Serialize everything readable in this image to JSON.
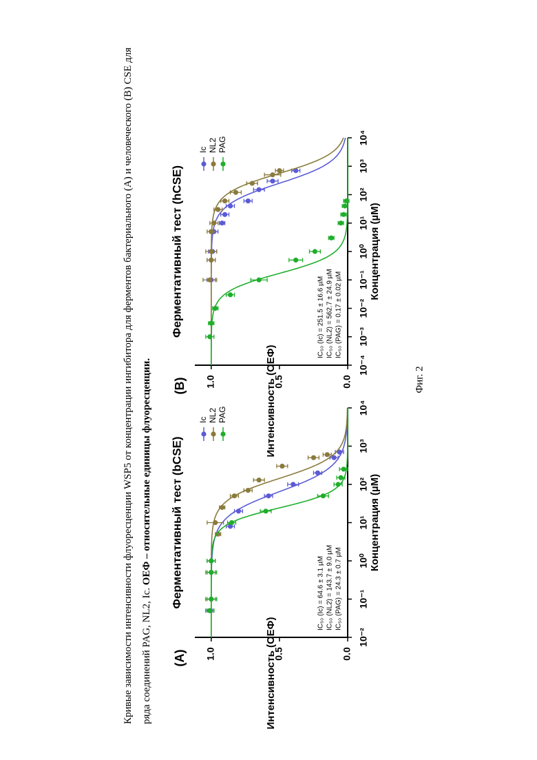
{
  "caption": {
    "text_plain": "Кривые зависимости интенсивности флуоресценции WSP5 от концентрации ингибитора для ферментов бактериального (А) и человеческого (В) CSE для ряда соединений PAG, NL2, Ic. ",
    "text_bold": "ОЕФ – относительные единицы флуоресценции."
  },
  "figure_label": "Фиг. 2",
  "colors": {
    "Ic": "#5b5bd6",
    "NL2": "#8a7a3c",
    "PAG": "#1fae2b"
  },
  "chart_data": [
    {
      "type": "scatter",
      "panel_label": "(A)",
      "title": "Ферментативный тест (bCSE)",
      "xlabel": "Концентрация (µM)",
      "ylabel": "Интенсивность (ОЕФ)",
      "x_scale": "log",
      "xlim": [
        0.01,
        10000
      ],
      "ylim": [
        0,
        1.12
      ],
      "x_tick_labels": [
        "10⁻²",
        "10⁻¹",
        "10⁰",
        "10¹",
        "10²",
        "10³",
        "10⁴"
      ],
      "y_tick_labels": [
        "0.0",
        "0.5",
        "1.0"
      ],
      "legend_position": "top-right",
      "annotations": [
        "IC₅₀ (Ic) = 64.6 ± 3.1 µM",
        "IC₅₀ (NL2) = 143.7 ± 9.0 µM",
        "IC₅₀ (PAG) = 24.3 ± 0.7 µM"
      ],
      "series": [
        {
          "name": "Ic",
          "ic50": 64.6,
          "hill": 1.3,
          "points": [
            [
              0.05,
              1.01
            ],
            [
              0.1,
              1.0
            ],
            [
              0.5,
              1.0
            ],
            [
              1,
              1.0
            ],
            [
              8,
              0.86
            ],
            [
              20,
              0.8
            ],
            [
              50,
              0.58
            ],
            [
              100,
              0.4
            ],
            [
              200,
              0.22
            ],
            [
              500,
              0.1
            ],
            [
              700,
              0.06
            ]
          ],
          "errors": [
            0.02,
            0.04,
            0.03,
            0.03,
            0.03,
            0.03,
            0.03,
            0.04,
            0.03,
            0.03,
            0.03
          ]
        },
        {
          "name": "NL2",
          "ic50": 143.7,
          "hill": 1.5,
          "points": [
            [
              0.05,
              1.01
            ],
            [
              0.1,
              1.0
            ],
            [
              0.5,
              1.0
            ],
            [
              1,
              1.0
            ],
            [
              5,
              0.95
            ],
            [
              10,
              0.97
            ],
            [
              25,
              0.92
            ],
            [
              50,
              0.83
            ],
            [
              70,
              0.73
            ],
            [
              130,
              0.65
            ],
            [
              300,
              0.48
            ],
            [
              500,
              0.25
            ],
            [
              600,
              0.15
            ]
          ],
          "errors": [
            0.03,
            0.03,
            0.03,
            0.03,
            0.02,
            0.06,
            0.02,
            0.03,
            0.03,
            0.04,
            0.04,
            0.04,
            0.03
          ]
        },
        {
          "name": "PAG",
          "ic50": 24.3,
          "hill": 2.0,
          "points": [
            [
              0.05,
              1.01
            ],
            [
              0.1,
              1.0
            ],
            [
              0.5,
              1.0
            ],
            [
              1,
              1.0
            ],
            [
              10,
              0.85
            ],
            [
              20,
              0.6
            ],
            [
              50,
              0.18
            ],
            [
              100,
              0.07
            ],
            [
              150,
              0.05
            ],
            [
              250,
              0.03
            ]
          ],
          "errors": [
            0.03,
            0.04,
            0.04,
            0.03,
            0.03,
            0.04,
            0.04,
            0.03,
            0.03,
            0.03
          ]
        }
      ]
    },
    {
      "type": "scatter",
      "panel_label": "(B)",
      "title": "Ферментативный тест (hCSE)",
      "xlabel": "Концентрация (µM)",
      "ylabel": "Интенсивность (ОЕФ)",
      "x_scale": "log",
      "xlim": [
        0.0001,
        10000
      ],
      "ylim": [
        0,
        1.12
      ],
      "x_tick_labels": [
        "10⁻⁴",
        "10⁻³",
        "10⁻²",
        "10⁻¹",
        "10⁰",
        "10¹",
        "10²",
        "10³",
        "10⁴"
      ],
      "y_tick_labels": [
        "0.0",
        "0.5",
        "1.0"
      ],
      "legend_position": "top-right",
      "annotations": [
        "IC₅₀ (Ic) = 251.5 ± 16.6 µM",
        "IC₅₀ (NL2) = 562.7 ± 24.9 µM",
        "IC₅₀ (PAG) = 0.17 ± 0.02 µM"
      ],
      "series": [
        {
          "name": "Ic",
          "ic50": 251.5,
          "hill": 1.1,
          "points": [
            [
              0.1,
              1.0
            ],
            [
              0.5,
              1.0
            ],
            [
              1,
              0.99
            ],
            [
              5,
              0.98
            ],
            [
              10,
              0.92
            ],
            [
              20,
              0.9
            ],
            [
              40,
              0.86
            ],
            [
              60,
              0.73
            ],
            [
              150,
              0.65
            ],
            [
              300,
              0.55
            ],
            [
              700,
              0.38
            ]
          ],
          "errors": [
            0.03,
            0.03,
            0.03,
            0.03,
            0.02,
            0.03,
            0.03,
            0.03,
            0.04,
            0.04,
            0.03
          ]
        },
        {
          "name": "NL2",
          "ic50": 562.7,
          "hill": 1.2,
          "points": [
            [
              0.1,
              1.01
            ],
            [
              0.5,
              1.0
            ],
            [
              1,
              1.0
            ],
            [
              5,
              1.0
            ],
            [
              10,
              0.98
            ],
            [
              30,
              0.95
            ],
            [
              60,
              0.9
            ],
            [
              120,
              0.82
            ],
            [
              250,
              0.7
            ],
            [
              500,
              0.55
            ],
            [
              700,
              0.5
            ]
          ],
          "errors": [
            0.05,
            0.03,
            0.04,
            0.03,
            0.03,
            0.03,
            0.03,
            0.04,
            0.04,
            0.06,
            0.03
          ]
        },
        {
          "name": "PAG",
          "ic50": 0.17,
          "hill": 1.3,
          "points": [
            [
              0.001,
              1.01
            ],
            [
              0.003,
              1.0
            ],
            [
              0.01,
              0.97
            ],
            [
              0.03,
              0.86
            ],
            [
              0.1,
              0.65
            ],
            [
              0.5,
              0.38
            ],
            [
              1,
              0.24
            ],
            [
              3,
              0.12
            ],
            [
              10,
              0.05
            ],
            [
              20,
              0.03
            ],
            [
              40,
              0.02
            ],
            [
              60,
              0.01
            ]
          ],
          "errors": [
            0.03,
            0.02,
            0.02,
            0.03,
            0.06,
            0.05,
            0.04,
            0.02,
            0.02,
            0.02,
            0.02,
            0.02
          ]
        }
      ]
    }
  ]
}
